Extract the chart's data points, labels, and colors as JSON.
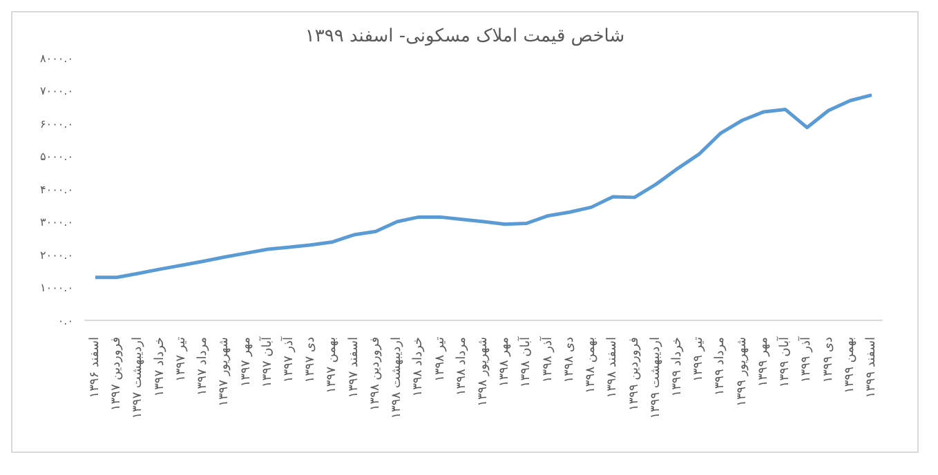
{
  "chart_data": {
    "type": "line",
    "title": "شاخص قیمت املاک مسکونی- اسفند ۱۳۹۹",
    "categories": [
      "اسفند ۱۳۹۶",
      "فروردین ۱۳۹۷",
      "اردیبهشت ۱۳۹۷",
      "خرداد ۱۳۹۷",
      "تیر ۱۳۹۷",
      "مرداد ۱۳۹۷",
      "شهریور ۱۳۹۷",
      "مهر ۱۳۹۷",
      "آبان ۱۳۹۷",
      "آذر ۱۳۹۷",
      "دی ۱۳۹۷",
      "بهمن ۱۳۹۷",
      "اسفند ۱۳۹۷",
      "فروردین ۱۳۹۸",
      "اردیبهشت ۱۳۹۸",
      "خرداد ۱۳۹۸",
      "تیر ۱۳۹۸",
      "مرداد ۱۳۹۸",
      "شهریور ۱۳۹۸",
      "مهر ۱۳۹۸",
      "آبان ۱۳۹۸",
      "آذر ۱۳۹۸",
      "دی ۱۳۹۸",
      "بهمن ۱۳۹۸",
      "اسفند ۱۳۹۸",
      "فروردین ۱۳۹۹",
      "اردیبهشت ۱۳۹۹",
      "خرداد ۱۳۹۹",
      "تیر ۱۳۹۹",
      "مرداد ۱۳۹۹",
      "شهریور ۱۳۹۹",
      "مهر ۱۳۹۹",
      "آبان ۱۳۹۹",
      "آذر ۱۳۹۹",
      "دی ۱۳۹۹",
      "بهمن ۱۳۹۹",
      "اسفند ۱۳۹۹"
    ],
    "series": [
      {
        "color": "#5b9bd5",
        "values": [
          1310,
          1310,
          1430,
          1560,
          1680,
          1800,
          1930,
          2050,
          2170,
          2230,
          2300,
          2390,
          2610,
          2710,
          3010,
          3150,
          3150,
          3080,
          3010,
          2930,
          2960,
          3190,
          3300,
          3450,
          3770,
          3750,
          4150,
          4630,
          5070,
          5710,
          6100,
          6360,
          6430,
          5880,
          6400,
          6700,
          6870
        ]
      }
    ],
    "ylim": [
      0,
      8000
    ],
    "yticks": [
      {
        "value": 0,
        "label": "۰.۰"
      },
      {
        "value": 1000,
        "label": "۱۰۰۰.۰"
      },
      {
        "value": 2000,
        "label": "۲۰۰۰.۰"
      },
      {
        "value": 3000,
        "label": "۳۰۰۰.۰"
      },
      {
        "value": 4000,
        "label": "۴۰۰۰.۰"
      },
      {
        "value": 5000,
        "label": "۵۰۰۰.۰"
      },
      {
        "value": 6000,
        "label": "۶۰۰۰.۰"
      },
      {
        "value": 7000,
        "label": "۷۰۰۰.۰"
      },
      {
        "value": 8000,
        "label": "۸۰۰۰.۰"
      }
    ],
    "grid": false,
    "legend": false,
    "marker": "none",
    "line_style": "solid"
  }
}
